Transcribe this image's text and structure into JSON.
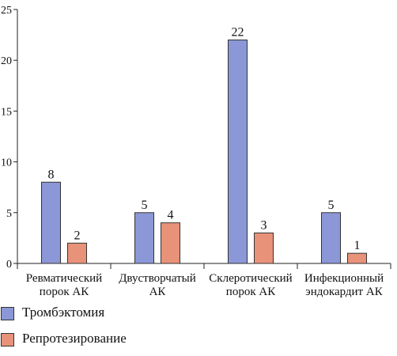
{
  "chart_data": {
    "type": "bar",
    "categories": [
      [
        "Ревматический",
        "порок АК"
      ],
      [
        "Двустворчатый",
        "АК"
      ],
      [
        "Склеротический",
        "порок АК"
      ],
      [
        "Инфекционный",
        "эндокардит АК"
      ]
    ],
    "series": [
      {
        "name": "Тромбэктомия",
        "values": [
          8,
          5,
          22,
          5
        ],
        "color": "#8b97d6"
      },
      {
        "name": "Репротезирование",
        "values": [
          2,
          4,
          3,
          1
        ],
        "color": "#e8927a"
      }
    ],
    "ylim": [
      0,
      25
    ],
    "yticks": [
      0,
      5,
      10,
      15,
      20,
      25
    ],
    "grid": false,
    "legend_position": "bottom-left"
  }
}
